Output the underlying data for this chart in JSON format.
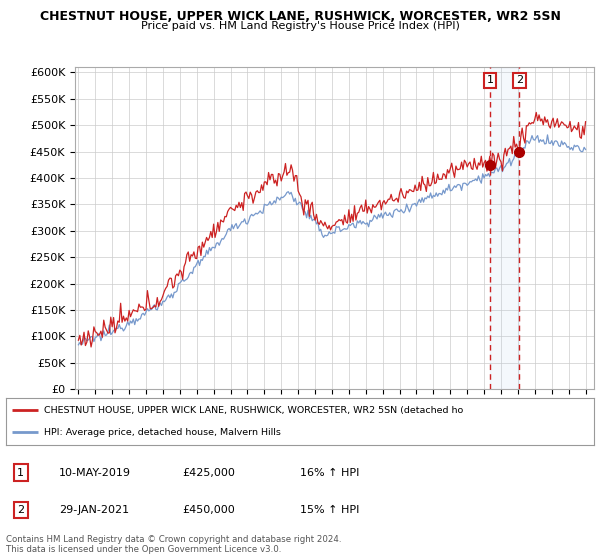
{
  "title_line1": "CHESTNUT HOUSE, UPPER WICK LANE, RUSHWICK, WORCESTER, WR2 5SN",
  "title_line2": "Price paid vs. HM Land Registry's House Price Index (HPI)",
  "ylabel_ticks": [
    "£0",
    "£50K",
    "£100K",
    "£150K",
    "£200K",
    "£250K",
    "£300K",
    "£350K",
    "£400K",
    "£450K",
    "£500K",
    "£550K",
    "£600K"
  ],
  "ytick_values": [
    0,
    50000,
    100000,
    150000,
    200000,
    250000,
    300000,
    350000,
    400000,
    450000,
    500000,
    550000,
    600000
  ],
  "ylim": [
    0,
    610000
  ],
  "xlim_start": 1994.8,
  "xlim_end": 2025.5,
  "marker1_x": 2019.36,
  "marker1_y": 425000,
  "marker2_x": 2021.08,
  "marker2_y": 450000,
  "vline1_x": 2019.36,
  "vline2_x": 2021.08,
  "shade_alpha": 0.12,
  "legend_line1": "CHESTNUT HOUSE, UPPER WICK LANE, RUSHWICK, WORCESTER, WR2 5SN (detached ho",
  "legend_line2": "HPI: Average price, detached house, Malvern Hills",
  "table_row1": [
    "1",
    "10-MAY-2019",
    "£425,000",
    "16% ↑ HPI"
  ],
  "table_row2": [
    "2",
    "29-JAN-2021",
    "£450,000",
    "15% ↑ HPI"
  ],
  "footer": "Contains HM Land Registry data © Crown copyright and database right 2024.\nThis data is licensed under the Open Government Licence v3.0.",
  "hpi_color": "#7799cc",
  "price_color": "#cc2222",
  "vline_color": "#cc2222",
  "shade_color": "#aaccee",
  "bg_color": "#ffffff",
  "grid_color": "#cccccc",
  "marker_box_color": "#cc2222",
  "dot_color": "#aa0000"
}
